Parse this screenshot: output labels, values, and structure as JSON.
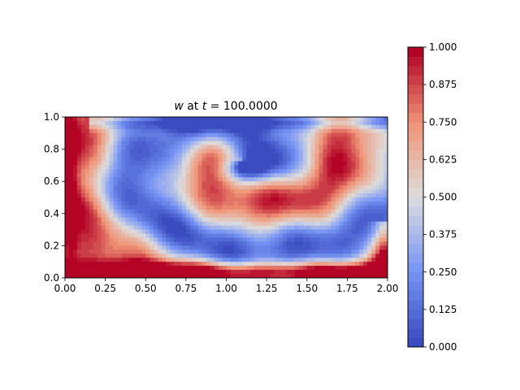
{
  "chart_data": [
    {
      "type": "heatmap",
      "title_var": "w",
      "title_mid": " at ",
      "title_t": "t",
      "title_eq": " = ",
      "title_val": "100.0000",
      "xlim": [
        0.0,
        2.0
      ],
      "ylim": [
        0.0,
        1.0
      ],
      "x_ticks": [
        "0.00",
        "0.25",
        "0.50",
        "0.75",
        "1.00",
        "1.25",
        "1.50",
        "1.75",
        "2.00"
      ],
      "y_ticks": [
        "0.0",
        "0.2",
        "0.4",
        "0.6",
        "0.8",
        "1.0"
      ],
      "grid": false,
      "colormap": "coolwarm",
      "colormap_low": "#3b4cc0",
      "colormap_mid": "#dddddd",
      "colormap_high": "#b40426",
      "field_description": "filled contour of w in [0,1]; large red spiral arm curling from bottom-left around a blue vortex center near (1.1, 0.7); red band along bottom edge; blue regions along top edge and lower-middle",
      "features": [
        {
          "kind": "vortex_core_low",
          "x": 1.1,
          "y": 0.72,
          "value": 0.1
        },
        {
          "kind": "spiral_arm_high",
          "value": 0.85
        },
        {
          "kind": "bottom_band_high",
          "y": 0.03,
          "value": 0.9
        },
        {
          "kind": "top_band_low",
          "y": 0.95,
          "value": 0.2
        }
      ]
    },
    {
      "type": "colorbar",
      "range": [
        0.0,
        1.0
      ],
      "levels": 32,
      "ticks": [
        "0.000",
        "0.125",
        "0.250",
        "0.375",
        "0.500",
        "0.625",
        "0.750",
        "0.875",
        "1.000"
      ]
    }
  ]
}
